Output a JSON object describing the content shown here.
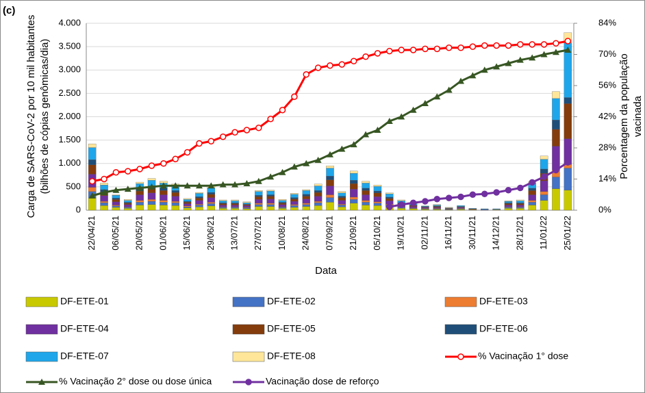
{
  "chart_data": {
    "type": "bar",
    "stacked": true,
    "panel_label": "(c)",
    "y_label": [
      "Carga de SARS-CoV-2 por 10 mil habitantes",
      "(bilhões de cópias genômicas/dia)"
    ],
    "y2_label": [
      "Porcentagem da população",
      "vacinada"
    ],
    "x_label": "Data",
    "categories": [
      "22/04/21",
      null,
      "06/05/21",
      null,
      "20/05/21",
      null,
      "01/06/21",
      null,
      "15/06/21",
      null,
      "29/06/21",
      null,
      "13/07/21",
      null,
      "27/07/21",
      null,
      "10/08/21",
      null,
      "24/08/21",
      null,
      "07/09/21",
      null,
      "21/09/21",
      null,
      "05/10/21",
      null,
      "19/10/21",
      null,
      "02/11/21",
      null,
      "16/11/21",
      null,
      "30/11/21",
      null,
      "14/12/21",
      null,
      "28/12/21",
      null,
      "11/01/22",
      null,
      "25/01/22"
    ],
    "ylim": [
      0,
      4000
    ],
    "yticks": [
      0,
      500,
      {
        "value": 1000,
        "label": "1.000"
      },
      {
        "value": 1500,
        "label": "1.500"
      },
      {
        "value": 2000,
        "label": "2.000"
      },
      {
        "value": 2500,
        "label": "2.500"
      },
      {
        "value": 3000,
        "label": "3.000"
      },
      {
        "value": 3500,
        "label": "3.500"
      },
      {
        "value": 4000,
        "label": "4.000"
      }
    ],
    "y2lim": [
      0,
      84
    ],
    "y2ticks": [
      {
        "value": 0,
        "label": "0%"
      },
      {
        "value": 14,
        "label": "14%"
      },
      {
        "value": 28,
        "label": "28%"
      },
      {
        "value": 42,
        "label": "42%"
      },
      {
        "value": 56,
        "label": "56%"
      },
      {
        "value": 70,
        "label": "70%"
      },
      {
        "value": 84,
        "label": "84%"
      }
    ],
    "grid": true,
    "series": [
      {
        "name": "DF-ETE-01",
        "color": "#c9c900",
        "values": [
          260,
          100,
          60,
          40,
          110,
          120,
          110,
          100,
          50,
          70,
          90,
          40,
          40,
          30,
          80,
          80,
          40,
          60,
          80,
          100,
          170,
          70,
          150,
          110,
          100,
          70,
          40,
          30,
          20,
          20,
          10,
          20,
          10,
          0,
          10,
          40,
          40,
          110,
          210,
          460,
          430
        ]
      },
      {
        "name": "DF-ETE-02",
        "color": "#4472c4",
        "values": [
          140,
          60,
          30,
          20,
          60,
          70,
          60,
          60,
          20,
          40,
          50,
          20,
          20,
          20,
          40,
          40,
          20,
          40,
          40,
          60,
          100,
          40,
          80,
          60,
          50,
          40,
          20,
          10,
          10,
          10,
          10,
          10,
          0,
          10,
          0,
          20,
          20,
          60,
          120,
          250,
          470
        ]
      },
      {
        "name": "DF-ETE-03",
        "color": "#ed7d31",
        "values": [
          90,
          30,
          20,
          10,
          40,
          40,
          40,
          30,
          20,
          20,
          30,
          10,
          10,
          10,
          30,
          30,
          10,
          20,
          30,
          30,
          60,
          20,
          50,
          40,
          30,
          20,
          10,
          10,
          10,
          10,
          0,
          10,
          0,
          0,
          0,
          10,
          10,
          40,
          70,
          150,
          80
        ]
      },
      {
        "name": "DF-ETE-04",
        "color": "#7030a0",
        "values": [
          280,
          120,
          70,
          50,
          120,
          140,
          120,
          110,
          50,
          80,
          100,
          40,
          40,
          40,
          80,
          90,
          50,
          70,
          90,
          110,
          190,
          80,
          170,
          120,
          110,
          70,
          40,
          30,
          20,
          20,
          10,
          20,
          10,
          10,
          10,
          40,
          40,
          120,
          230,
          510,
          550
        ]
      },
      {
        "name": "DF-ETE-05",
        "color": "#843c0c",
        "values": [
          200,
          80,
          50,
          30,
          80,
          100,
          90,
          80,
          30,
          50,
          70,
          30,
          30,
          20,
          60,
          60,
          30,
          50,
          60,
          80,
          130,
          60,
          120,
          90,
          80,
          50,
          30,
          20,
          10,
          20,
          10,
          10,
          10,
          0,
          0,
          30,
          30,
          90,
          160,
          360,
          750
        ]
      },
      {
        "name": "DF-ETE-06",
        "color": "#1f4e79",
        "values": [
          110,
          50,
          30,
          20,
          50,
          50,
          50,
          40,
          20,
          30,
          40,
          20,
          20,
          10,
          30,
          30,
          20,
          30,
          40,
          40,
          80,
          30,
          70,
          50,
          40,
          30,
          20,
          10,
          10,
          10,
          0,
          10,
          0,
          0,
          0,
          20,
          20,
          50,
          90,
          200,
          130
        ]
      },
      {
        "name": "DF-ETE-07",
        "color": "#1fa6ea",
        "values": [
          260,
          100,
          60,
          40,
          110,
          120,
          110,
          100,
          40,
          70,
          100,
          40,
          40,
          30,
          80,
          80,
          40,
          70,
          80,
          100,
          170,
          70,
          150,
          110,
          100,
          70,
          40,
          30,
          10,
          20,
          10,
          20,
          10,
          10,
          10,
          30,
          40,
          110,
          210,
          460,
          1170
        ]
      },
      {
        "name": "DF-ETE-08",
        "color": "#ffe699",
        "values": [
          80,
          40,
          10,
          20,
          30,
          40,
          40,
          40,
          20,
          20,
          40,
          20,
          20,
          20,
          20,
          20,
          20,
          20,
          20,
          40,
          50,
          30,
          50,
          40,
          30,
          20,
          20,
          10,
          0,
          10,
          10,
          0,
          0,
          0,
          0,
          10,
          20,
          30,
          70,
          150,
          220
        ]
      },
      {
        "name": "% Vacinação 1° dose",
        "type": "line",
        "axis": "y2",
        "color": "#ff0000",
        "marker": "circle-open",
        "values": [
          13,
          14,
          17,
          17.5,
          18.5,
          20,
          21,
          23,
          26,
          30,
          31,
          33,
          35,
          36,
          37,
          41,
          45,
          51,
          61,
          64,
          65,
          65.5,
          67,
          69,
          70.5,
          71.5,
          72,
          72,
          72.5,
          72.5,
          73,
          73,
          73.5,
          74,
          74,
          74,
          74.5,
          74.5,
          74.5,
          75,
          76
        ]
      },
      {
        "name": "% Vacinação 2° dose ou dose única",
        "type": "line",
        "axis": "y2",
        "color": "#375623",
        "marker": "triangle",
        "values": [
          6.5,
          8,
          9,
          9.5,
          10,
          10.5,
          11,
          11,
          11,
          11,
          11,
          11.5,
          11.5,
          12,
          13,
          15,
          17,
          19.5,
          21,
          22.5,
          25,
          27.5,
          29.5,
          34,
          36,
          40,
          42,
          45,
          48,
          51,
          54,
          58,
          60.5,
          63,
          64.5,
          66,
          67.5,
          68.5,
          70,
          71,
          72
        ]
      },
      {
        "name": "Vacinação dose de reforço",
        "type": "line",
        "axis": "y2",
        "color": "#7030a0",
        "marker": "circle",
        "values": [
          null,
          null,
          null,
          null,
          null,
          null,
          null,
          null,
          null,
          null,
          null,
          null,
          null,
          null,
          null,
          null,
          null,
          null,
          null,
          null,
          null,
          null,
          null,
          null,
          null,
          1.5,
          2.5,
          3.3,
          4,
          5,
          5.5,
          6,
          7,
          7.3,
          8,
          9,
          10,
          12.5,
          15,
          18,
          21.5
        ]
      }
    ]
  }
}
